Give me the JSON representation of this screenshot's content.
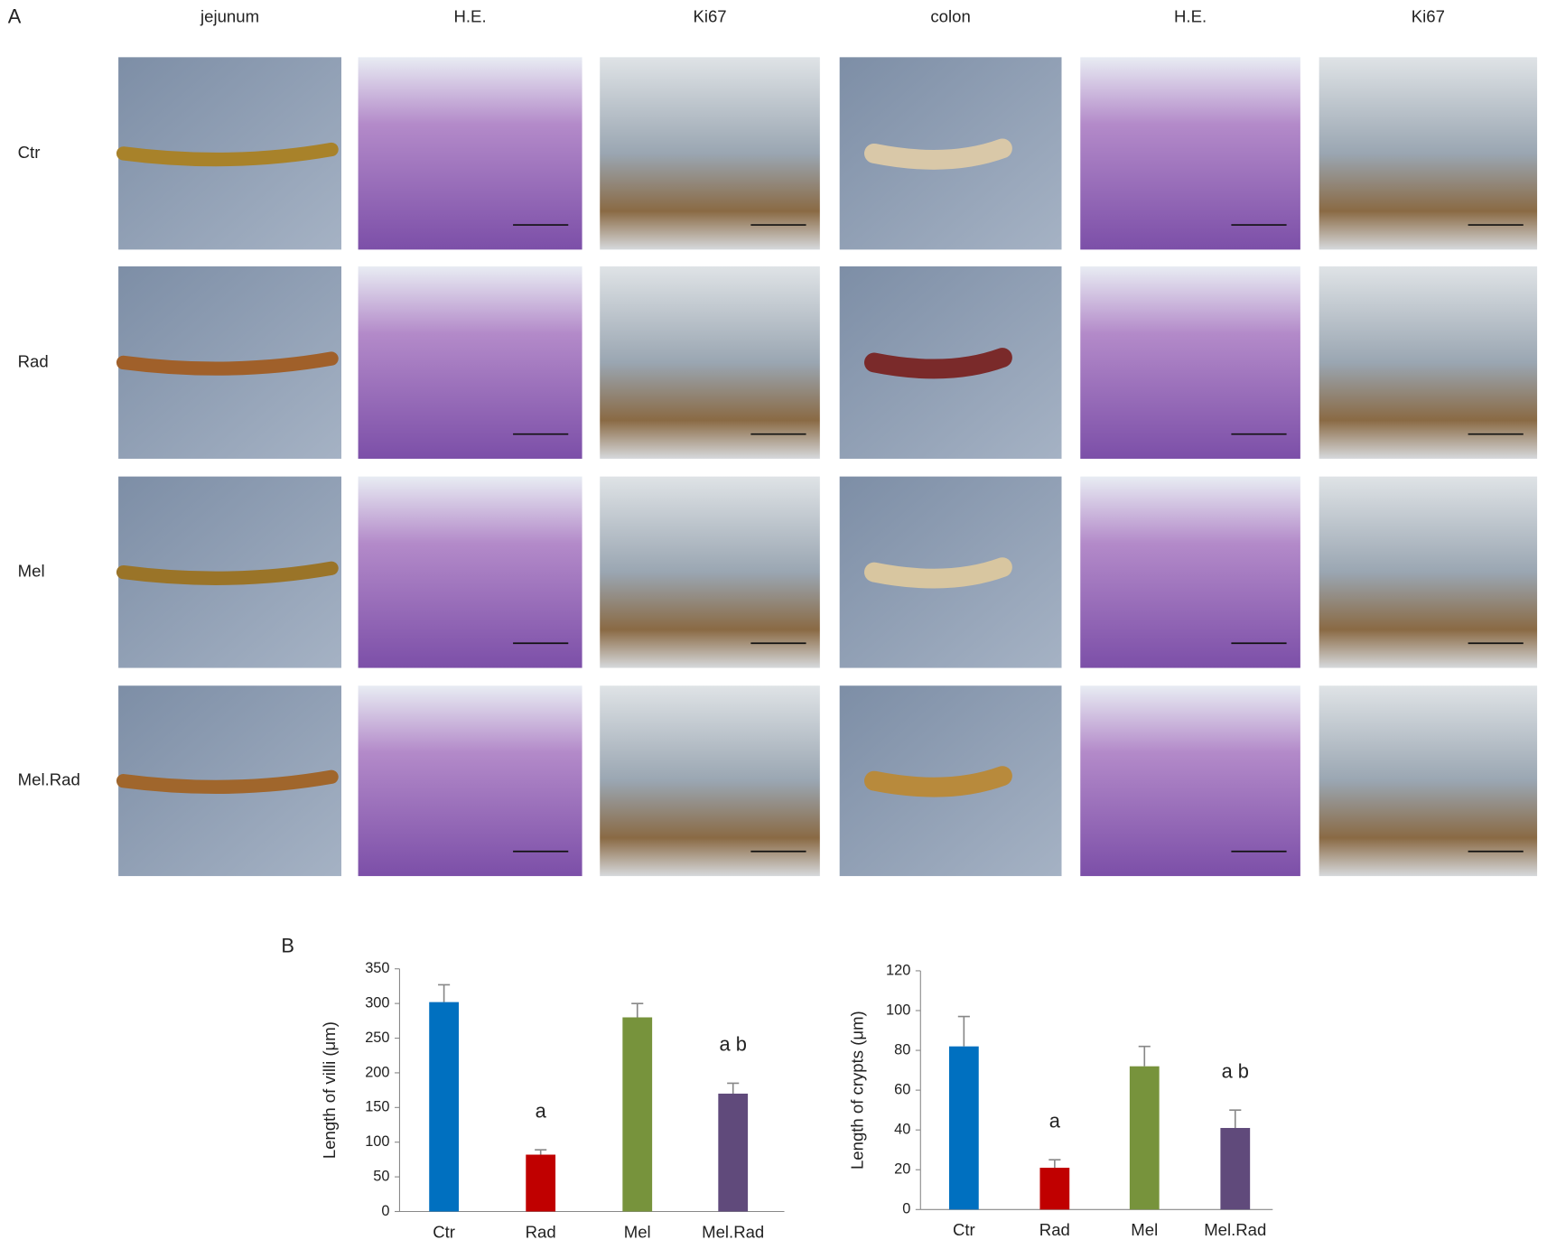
{
  "figure": {
    "panel_a": "A",
    "panel_b": "B",
    "column_headers": [
      "jejunum",
      "H.E.",
      "Ki67",
      "colon",
      "H.E.",
      "Ki67"
    ],
    "row_labels": [
      "Ctr",
      "Rad",
      "Mel",
      "Mel.Rad"
    ]
  },
  "chart_data": [
    {
      "type": "bar",
      "y_label": "Length of villi (μm)",
      "categories": [
        "Ctr",
        "Rad",
        "Mel",
        "Mel.Rad"
      ],
      "values": [
        302,
        82,
        280,
        170
      ],
      "errors": [
        25,
        7,
        20,
        15
      ],
      "value_annotations": [
        null,
        "a",
        null,
        "a b"
      ],
      "colors": [
        "#0070c0",
        "#c00000",
        "#77933c",
        "#604a7b"
      ],
      "ylim": [
        0,
        350
      ],
      "yticks": [
        0,
        50,
        100,
        150,
        200,
        250,
        300,
        350
      ]
    },
    {
      "type": "bar",
      "y_label": "Length of crypts (μm)",
      "categories": [
        "Ctr",
        "Rad",
        "Mel",
        "Mel.Rad"
      ],
      "values": [
        82,
        21,
        72,
        41
      ],
      "errors": [
        15,
        4,
        10,
        9
      ],
      "value_annotations": [
        null,
        "a",
        null,
        "a b"
      ],
      "colors": [
        "#0070c0",
        "#c00000",
        "#77933c",
        "#604a7b"
      ],
      "ylim": [
        0,
        120
      ],
      "yticks": [
        0,
        20,
        40,
        60,
        80,
        100,
        120
      ]
    }
  ]
}
